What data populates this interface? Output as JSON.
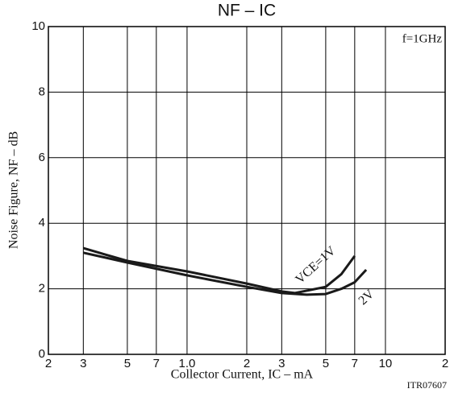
{
  "chart_data": {
    "type": "line",
    "title": "NF – IC",
    "xlabel": "Collector Current, IC  –  mA",
    "ylabel": "Noise Figure, NF  –  dB",
    "annotations": [
      "f=1GHz",
      "ITR07607"
    ],
    "xscale": "log",
    "xlim": [
      0.2,
      20
    ],
    "xticks": [
      {
        "value": 0.2,
        "label": "2"
      },
      {
        "value": 0.3,
        "label": "3"
      },
      {
        "value": 0.5,
        "label": "5"
      },
      {
        "value": 0.7,
        "label": "7"
      },
      {
        "value": 1,
        "label": "1.0"
      },
      {
        "value": 2,
        "label": "2"
      },
      {
        "value": 3,
        "label": "3"
      },
      {
        "value": 5,
        "label": "5"
      },
      {
        "value": 7,
        "label": "7"
      },
      10,
      {
        "value": 20,
        "label": "2"
      }
    ],
    "ylim": [
      0,
      10
    ],
    "yticks": [
      0,
      2,
      4,
      6,
      8,
      10
    ],
    "grid": true,
    "series": [
      {
        "name": "VCE=1V",
        "color": "#1a1a1a",
        "x": [
          0.3,
          0.5,
          1,
          2,
          3,
          3.5,
          5,
          6,
          7
        ],
        "values": [
          3.24,
          2.85,
          2.53,
          2.16,
          1.92,
          1.87,
          2.06,
          2.45,
          3.0
        ]
      },
      {
        "name": "2V",
        "color": "#1a1a1a",
        "x": [
          0.3,
          0.5,
          1,
          2,
          3,
          4,
          5,
          6,
          7,
          8
        ],
        "values": [
          3.1,
          2.8,
          2.41,
          2.06,
          1.87,
          1.82,
          1.84,
          2.0,
          2.2,
          2.58
        ]
      }
    ]
  }
}
